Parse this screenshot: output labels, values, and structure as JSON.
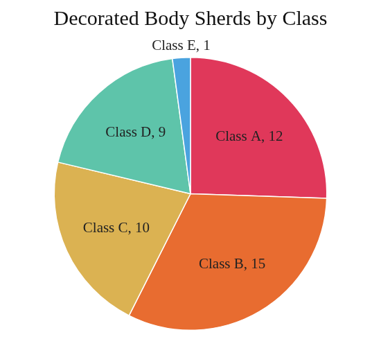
{
  "chart_data": {
    "type": "pie",
    "title": "Decorated Body Sherds by Class",
    "categories": [
      "Class A",
      "Class B",
      "Class C",
      "Class D",
      "Class E"
    ],
    "values": [
      12,
      15,
      10,
      9,
      1
    ],
    "value_labels": [
      "Class A, 12",
      "Class B, 15",
      "Class C, 10",
      "Class D, 9",
      "Class E, 1"
    ],
    "colors": [
      "#e0385a",
      "#e86c30",
      "#dbb252",
      "#5ec4aa",
      "#4aa3df"
    ],
    "data_labels": true
  }
}
